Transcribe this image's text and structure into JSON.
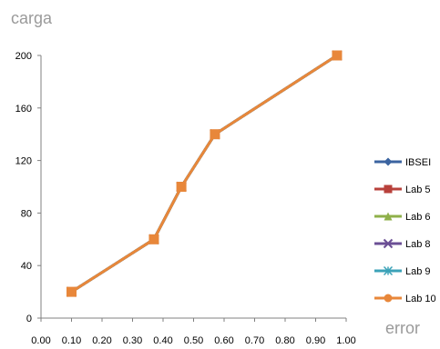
{
  "chart_data": {
    "type": "line",
    "ylabel": "carga",
    "xlabel": "error",
    "xlim": [
      0.0,
      1.0
    ],
    "ylim": [
      0,
      200
    ],
    "xticks": [
      "0.00",
      "0.10",
      "0.20",
      "0.30",
      "0.40",
      "0.50",
      "0.60",
      "0.70",
      "0.80",
      "0.90",
      "1.00"
    ],
    "yticks": [
      "0",
      "40",
      "80",
      "120",
      "160",
      "200"
    ],
    "grid": false,
    "legend_position": "right",
    "series": [
      {
        "name": "IBSEI",
        "color": "#3b64a0",
        "marker": "diamond",
        "x": [
          0.1,
          0.37,
          0.46,
          0.57,
          0.97
        ],
        "y": [
          20,
          60,
          100,
          140,
          200
        ]
      },
      {
        "name": "Lab 5",
        "color": "#b8413b",
        "marker": "square",
        "x": [
          0.1,
          0.37,
          0.46,
          0.57,
          0.97
        ],
        "y": [
          20,
          60,
          100,
          140,
          200
        ]
      },
      {
        "name": "Lab 6",
        "color": "#8fb04a",
        "marker": "triangle",
        "x": [
          0.1,
          0.37,
          0.46,
          0.57,
          0.97
        ],
        "y": [
          20,
          60,
          100,
          140,
          200
        ]
      },
      {
        "name": "Lab 8",
        "color": "#6b4f95",
        "marker": "x",
        "x": [
          0.1,
          0.37,
          0.46,
          0.57,
          0.97
        ],
        "y": [
          20,
          60,
          100,
          140,
          200
        ]
      },
      {
        "name": "Lab 9",
        "color": "#3ba2b8",
        "marker": "star",
        "x": [
          0.1,
          0.37,
          0.46,
          0.57,
          0.97
        ],
        "y": [
          20,
          60,
          100,
          140,
          200
        ]
      },
      {
        "name": "Lab 10",
        "color": "#e8873a",
        "marker": "circle",
        "x": [
          0.1,
          0.37,
          0.46,
          0.57,
          0.97
        ],
        "y": [
          20,
          60,
          100,
          140,
          200
        ]
      }
    ]
  }
}
